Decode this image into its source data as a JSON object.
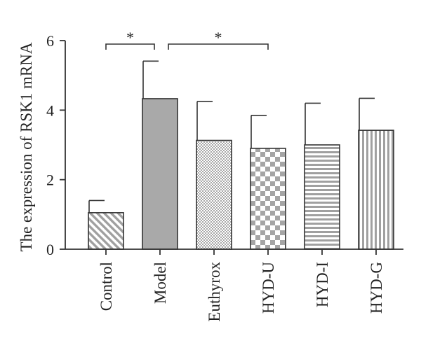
{
  "chart_data": {
    "type": "bar",
    "title": "",
    "xlabel": "",
    "ylabel": "The expression of RSK1 mRNA",
    "ylim": [
      0,
      6
    ],
    "yticks": [
      0,
      2,
      4,
      6
    ],
    "grid": false,
    "categories": [
      "Control",
      "Model",
      "Euthyrox",
      "HYD-U",
      "HYD-I",
      "HYD-G"
    ],
    "values": [
      1.05,
      4.33,
      3.13,
      2.9,
      3.0,
      3.42
    ],
    "error": [
      0.35,
      1.08,
      1.12,
      0.95,
      1.2,
      0.92
    ],
    "fills": [
      "diagonal-hatch",
      "solid-gray",
      "fine-dots",
      "checkerboard",
      "horizontal-stripes",
      "vertical-stripes"
    ],
    "significance": [
      {
        "from": 0,
        "to": 1,
        "label": "*"
      },
      {
        "from": 1,
        "to": 3,
        "label": "*"
      }
    ],
    "colors": {
      "bar": "#a9a9a9",
      "line": "#333333",
      "hatch": "#9a9a9a"
    }
  }
}
